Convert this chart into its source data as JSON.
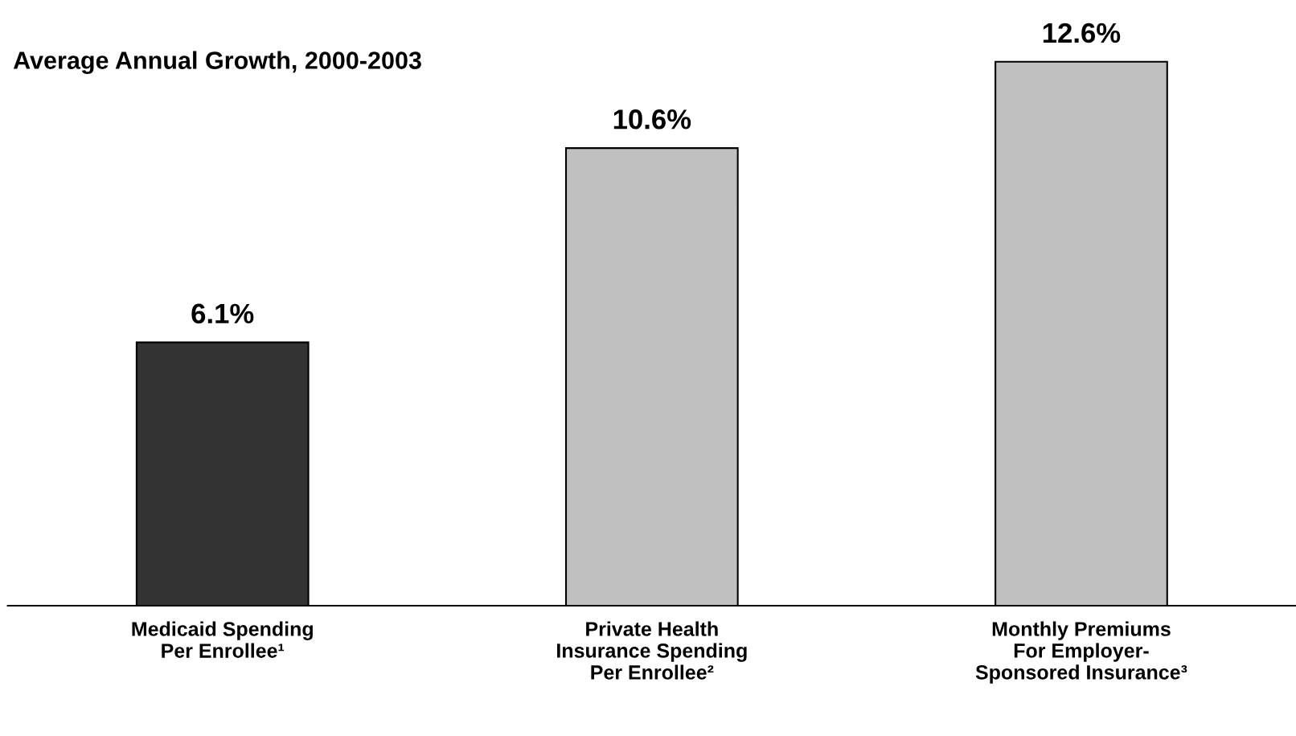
{
  "chart_data": {
    "type": "bar",
    "title": "Average Annual Growth, 2000-2003",
    "categories": [
      "Medicaid Spending\nPer Enrollee¹",
      "Private Health\nInsurance Spending\nPer Enrollee²",
      "Monthly Premiums\nFor Employer-\nSponsored Insurance³"
    ],
    "values": [
      6.1,
      10.6,
      12.6
    ],
    "colors": [
      "#333333",
      "#c0c0c0",
      "#c0c0c0"
    ],
    "value_labels": [
      "6.1%",
      "10.6%",
      "12.6%"
    ],
    "tick_labels": "x"
  }
}
